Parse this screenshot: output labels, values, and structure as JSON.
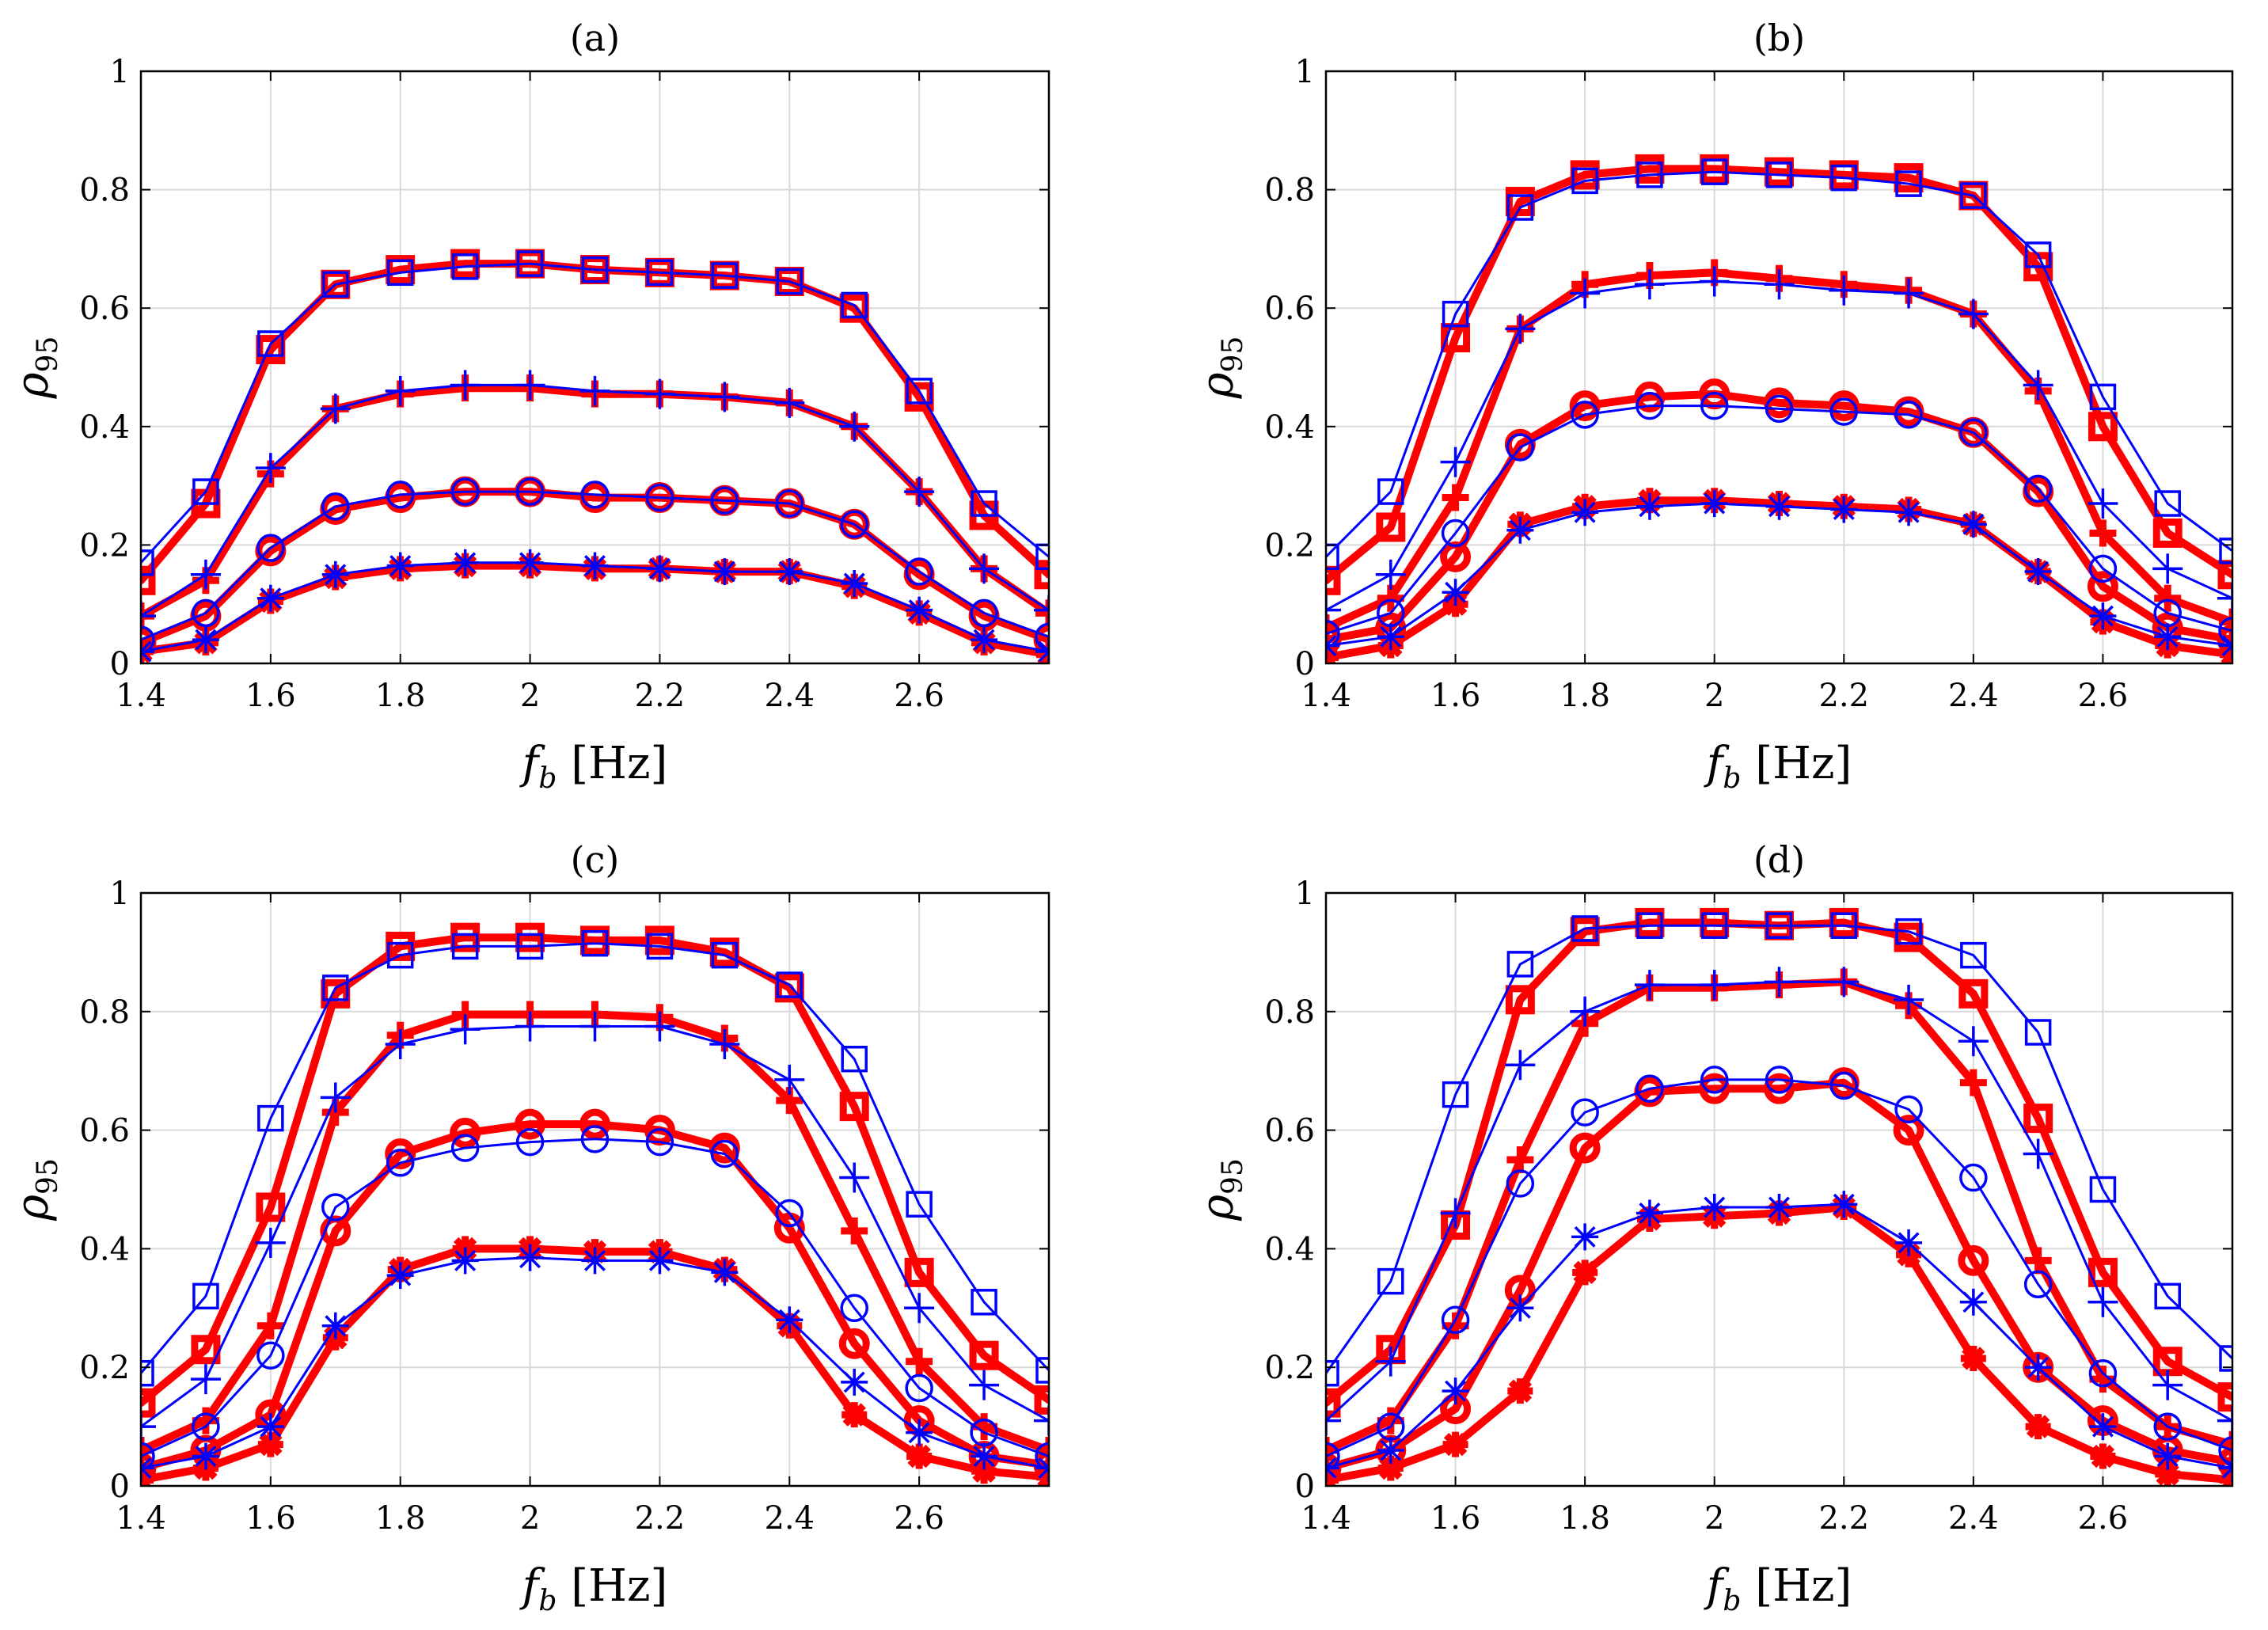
{
  "colors": {
    "simulation": "#ff0000",
    "model": "#0000ff",
    "grid": "#d9d9d9",
    "axis": "#000000"
  },
  "chart_data": [
    {
      "type": "line",
      "title": "(a)",
      "xlabel": {
        "symbol": "f",
        "subscript": "b",
        "unit": "[Hz]"
      },
      "ylabel": {
        "symbol": "ρ",
        "subscript": "95"
      },
      "xlim": [
        1.4,
        2.8
      ],
      "ylim": [
        0,
        1
      ],
      "xticks": [
        "1.4",
        "1.6",
        "1.8",
        "2",
        "2.2",
        "2.4",
        "2.6"
      ],
      "yticks": [
        "0",
        "0.2",
        "0.4",
        "0.6",
        "0.8",
        "1"
      ],
      "grid": true,
      "x": [
        1.4,
        1.5,
        1.6,
        1.7,
        1.8,
        1.9,
        2.0,
        2.1,
        2.2,
        2.3,
        2.4,
        2.5,
        2.6,
        2.7,
        2.8
      ],
      "series": [
        {
          "name": "red-square",
          "color": "red",
          "marker": "square",
          "values": [
            0.14,
            0.27,
            0.53,
            0.64,
            0.665,
            0.675,
            0.675,
            0.665,
            0.66,
            0.655,
            0.645,
            0.6,
            0.45,
            0.25,
            0.15
          ]
        },
        {
          "name": "blue-square",
          "color": "blue",
          "marker": "square",
          "values": [
            0.17,
            0.29,
            0.54,
            0.64,
            0.66,
            0.67,
            0.675,
            0.665,
            0.66,
            0.655,
            0.645,
            0.605,
            0.46,
            0.27,
            0.18
          ]
        },
        {
          "name": "red-plus",
          "color": "red",
          "marker": "plus",
          "values": [
            0.08,
            0.14,
            0.32,
            0.43,
            0.455,
            0.465,
            0.465,
            0.455,
            0.455,
            0.45,
            0.44,
            0.4,
            0.29,
            0.16,
            0.085
          ]
        },
        {
          "name": "blue-plus",
          "color": "blue",
          "marker": "plus",
          "values": [
            0.08,
            0.15,
            0.33,
            0.43,
            0.46,
            0.47,
            0.47,
            0.46,
            0.455,
            0.45,
            0.44,
            0.4,
            0.29,
            0.16,
            0.09
          ]
        },
        {
          "name": "red-circle",
          "color": "red",
          "marker": "circle",
          "values": [
            0.035,
            0.08,
            0.19,
            0.26,
            0.28,
            0.29,
            0.29,
            0.28,
            0.28,
            0.275,
            0.27,
            0.235,
            0.15,
            0.08,
            0.04
          ]
        },
        {
          "name": "blue-circle",
          "color": "blue",
          "marker": "circle",
          "values": [
            0.04,
            0.085,
            0.195,
            0.265,
            0.285,
            0.29,
            0.29,
            0.285,
            0.28,
            0.275,
            0.27,
            0.235,
            0.155,
            0.085,
            0.045
          ]
        },
        {
          "name": "red-star",
          "color": "red",
          "marker": "star",
          "values": [
            0.02,
            0.035,
            0.105,
            0.145,
            0.16,
            0.165,
            0.165,
            0.16,
            0.16,
            0.155,
            0.155,
            0.13,
            0.085,
            0.035,
            0.015
          ]
        },
        {
          "name": "blue-star",
          "color": "blue",
          "marker": "star",
          "values": [
            0.02,
            0.04,
            0.11,
            0.15,
            0.165,
            0.17,
            0.17,
            0.165,
            0.16,
            0.155,
            0.155,
            0.135,
            0.09,
            0.04,
            0.02
          ]
        }
      ]
    },
    {
      "type": "line",
      "title": "(b)",
      "xlabel": {
        "symbol": "f",
        "subscript": "b",
        "unit": "[Hz]"
      },
      "ylabel": {
        "symbol": "ρ",
        "subscript": "95"
      },
      "xlim": [
        1.4,
        2.8
      ],
      "ylim": [
        0,
        1
      ],
      "xticks": [
        "1.4",
        "1.6",
        "1.8",
        "2",
        "2.2",
        "2.4",
        "2.6"
      ],
      "yticks": [
        "0",
        "0.2",
        "0.4",
        "0.6",
        "0.8",
        "1"
      ],
      "grid": true,
      "x": [
        1.4,
        1.5,
        1.6,
        1.7,
        1.8,
        1.9,
        2.0,
        2.1,
        2.2,
        2.3,
        2.4,
        2.5,
        2.6,
        2.7,
        2.8
      ],
      "series": [
        {
          "name": "red-square",
          "color": "red",
          "marker": "square",
          "values": [
            0.14,
            0.23,
            0.55,
            0.78,
            0.825,
            0.835,
            0.835,
            0.83,
            0.825,
            0.82,
            0.79,
            0.67,
            0.4,
            0.22,
            0.15
          ]
        },
        {
          "name": "blue-square",
          "color": "blue",
          "marker": "square",
          "values": [
            0.18,
            0.29,
            0.59,
            0.77,
            0.815,
            0.825,
            0.83,
            0.825,
            0.82,
            0.81,
            0.79,
            0.69,
            0.45,
            0.27,
            0.19
          ]
        },
        {
          "name": "red-plus",
          "color": "red",
          "marker": "plus",
          "values": [
            0.06,
            0.11,
            0.28,
            0.565,
            0.64,
            0.655,
            0.66,
            0.65,
            0.64,
            0.63,
            0.59,
            0.46,
            0.22,
            0.11,
            0.07
          ]
        },
        {
          "name": "blue-plus",
          "color": "blue",
          "marker": "plus",
          "values": [
            0.09,
            0.15,
            0.34,
            0.565,
            0.625,
            0.64,
            0.645,
            0.64,
            0.63,
            0.625,
            0.59,
            0.47,
            0.27,
            0.16,
            0.11
          ]
        },
        {
          "name": "red-circle",
          "color": "red",
          "marker": "circle",
          "values": [
            0.04,
            0.06,
            0.18,
            0.37,
            0.435,
            0.45,
            0.455,
            0.44,
            0.435,
            0.425,
            0.39,
            0.29,
            0.13,
            0.06,
            0.04
          ]
        },
        {
          "name": "blue-circle",
          "color": "blue",
          "marker": "circle",
          "values": [
            0.05,
            0.085,
            0.22,
            0.365,
            0.42,
            0.435,
            0.435,
            0.43,
            0.425,
            0.42,
            0.39,
            0.295,
            0.16,
            0.085,
            0.055
          ]
        },
        {
          "name": "red-star",
          "color": "red",
          "marker": "star",
          "values": [
            0.01,
            0.03,
            0.1,
            0.235,
            0.265,
            0.275,
            0.275,
            0.27,
            0.265,
            0.26,
            0.235,
            0.155,
            0.07,
            0.03,
            0.015
          ]
        },
        {
          "name": "blue-star",
          "color": "blue",
          "marker": "star",
          "values": [
            0.03,
            0.045,
            0.12,
            0.225,
            0.255,
            0.265,
            0.27,
            0.265,
            0.26,
            0.255,
            0.235,
            0.155,
            0.08,
            0.045,
            0.03
          ]
        }
      ]
    },
    {
      "type": "line",
      "title": "(c)",
      "xlabel": {
        "symbol": "f",
        "subscript": "b",
        "unit": "[Hz]"
      },
      "ylabel": {
        "symbol": "ρ",
        "subscript": "95"
      },
      "xlim": [
        1.4,
        2.8
      ],
      "ylim": [
        0,
        1
      ],
      "xticks": [
        "1.4",
        "1.6",
        "1.8",
        "2",
        "2.2",
        "2.4",
        "2.6"
      ],
      "yticks": [
        "0",
        "0.2",
        "0.4",
        "0.6",
        "0.8",
        "1"
      ],
      "grid": true,
      "x": [
        1.4,
        1.5,
        1.6,
        1.7,
        1.8,
        1.9,
        2.0,
        2.1,
        2.2,
        2.3,
        2.4,
        2.5,
        2.6,
        2.7,
        2.8
      ],
      "series": [
        {
          "name": "red-square",
          "color": "red",
          "marker": "square",
          "values": [
            0.14,
            0.23,
            0.47,
            0.83,
            0.91,
            0.925,
            0.925,
            0.92,
            0.92,
            0.9,
            0.84,
            0.64,
            0.36,
            0.22,
            0.145
          ]
        },
        {
          "name": "blue-square",
          "color": "blue",
          "marker": "square",
          "values": [
            0.19,
            0.32,
            0.62,
            0.84,
            0.895,
            0.91,
            0.91,
            0.915,
            0.91,
            0.895,
            0.845,
            0.72,
            0.475,
            0.31,
            0.195
          ]
        },
        {
          "name": "red-plus",
          "color": "red",
          "marker": "plus",
          "values": [
            0.06,
            0.11,
            0.27,
            0.63,
            0.76,
            0.795,
            0.795,
            0.795,
            0.79,
            0.755,
            0.65,
            0.43,
            0.21,
            0.1,
            0.06
          ]
        },
        {
          "name": "blue-plus",
          "color": "blue",
          "marker": "plus",
          "values": [
            0.1,
            0.18,
            0.41,
            0.655,
            0.745,
            0.77,
            0.775,
            0.775,
            0.775,
            0.745,
            0.685,
            0.52,
            0.3,
            0.17,
            0.11
          ]
        },
        {
          "name": "red-circle",
          "color": "red",
          "marker": "circle",
          "values": [
            0.03,
            0.06,
            0.12,
            0.43,
            0.56,
            0.595,
            0.61,
            0.61,
            0.6,
            0.57,
            0.435,
            0.24,
            0.11,
            0.05,
            0.035
          ]
        },
        {
          "name": "blue-circle",
          "color": "blue",
          "marker": "circle",
          "values": [
            0.05,
            0.1,
            0.22,
            0.47,
            0.545,
            0.57,
            0.58,
            0.585,
            0.58,
            0.56,
            0.46,
            0.3,
            0.165,
            0.09,
            0.05
          ]
        },
        {
          "name": "red-star",
          "color": "red",
          "marker": "star",
          "values": [
            0.01,
            0.03,
            0.07,
            0.25,
            0.365,
            0.4,
            0.4,
            0.395,
            0.395,
            0.365,
            0.27,
            0.12,
            0.05,
            0.025,
            0.015
          ]
        },
        {
          "name": "blue-star",
          "color": "blue",
          "marker": "star",
          "values": [
            0.03,
            0.05,
            0.1,
            0.27,
            0.355,
            0.38,
            0.385,
            0.38,
            0.38,
            0.36,
            0.28,
            0.175,
            0.09,
            0.05,
            0.03
          ]
        }
      ]
    },
    {
      "type": "line",
      "title": "(d)",
      "xlabel": {
        "symbol": "f",
        "subscript": "b",
        "unit": "[Hz]"
      },
      "ylabel": {
        "symbol": "ρ",
        "subscript": "95"
      },
      "xlim": [
        1.4,
        2.8
      ],
      "ylim": [
        0,
        1
      ],
      "xticks": [
        "1.4",
        "1.6",
        "1.8",
        "2",
        "2.2",
        "2.4",
        "2.6"
      ],
      "yticks": [
        "0",
        "0.2",
        "0.4",
        "0.6",
        "0.8",
        "1"
      ],
      "grid": true,
      "x": [
        1.4,
        1.5,
        1.6,
        1.7,
        1.8,
        1.9,
        2.0,
        2.1,
        2.2,
        2.3,
        2.4,
        2.5,
        2.6,
        2.7,
        2.8
      ],
      "series": [
        {
          "name": "red-square",
          "color": "red",
          "marker": "square",
          "values": [
            0.14,
            0.23,
            0.44,
            0.82,
            0.935,
            0.95,
            0.95,
            0.945,
            0.95,
            0.925,
            0.83,
            0.62,
            0.36,
            0.21,
            0.15
          ]
        },
        {
          "name": "blue-square",
          "color": "blue",
          "marker": "square",
          "values": [
            0.19,
            0.345,
            0.66,
            0.88,
            0.94,
            0.945,
            0.945,
            0.945,
            0.945,
            0.935,
            0.895,
            0.765,
            0.5,
            0.32,
            0.215
          ]
        },
        {
          "name": "red-plus",
          "color": "red",
          "marker": "plus",
          "values": [
            0.06,
            0.11,
            0.27,
            0.55,
            0.78,
            0.84,
            0.84,
            0.845,
            0.85,
            0.81,
            0.68,
            0.38,
            0.18,
            0.1,
            0.07
          ]
        },
        {
          "name": "blue-plus",
          "color": "blue",
          "marker": "plus",
          "values": [
            0.11,
            0.21,
            0.46,
            0.71,
            0.8,
            0.845,
            0.845,
            0.85,
            0.85,
            0.82,
            0.75,
            0.56,
            0.31,
            0.17,
            0.11
          ]
        },
        {
          "name": "red-circle",
          "color": "red",
          "marker": "circle",
          "values": [
            0.03,
            0.06,
            0.13,
            0.33,
            0.57,
            0.665,
            0.67,
            0.67,
            0.68,
            0.6,
            0.38,
            0.2,
            0.11,
            0.06,
            0.04
          ]
        },
        {
          "name": "blue-circle",
          "color": "blue",
          "marker": "circle",
          "values": [
            0.05,
            0.1,
            0.28,
            0.51,
            0.63,
            0.67,
            0.685,
            0.685,
            0.675,
            0.635,
            0.52,
            0.34,
            0.19,
            0.1,
            0.06
          ]
        },
        {
          "name": "red-star",
          "color": "red",
          "marker": "star",
          "values": [
            0.01,
            0.03,
            0.07,
            0.16,
            0.36,
            0.45,
            0.455,
            0.46,
            0.47,
            0.39,
            0.215,
            0.1,
            0.05,
            0.02,
            0.01
          ]
        },
        {
          "name": "blue-star",
          "color": "blue",
          "marker": "star",
          "values": [
            0.03,
            0.06,
            0.16,
            0.3,
            0.42,
            0.46,
            0.47,
            0.47,
            0.475,
            0.41,
            0.31,
            0.2,
            0.1,
            0.05,
            0.03
          ]
        }
      ]
    }
  ]
}
